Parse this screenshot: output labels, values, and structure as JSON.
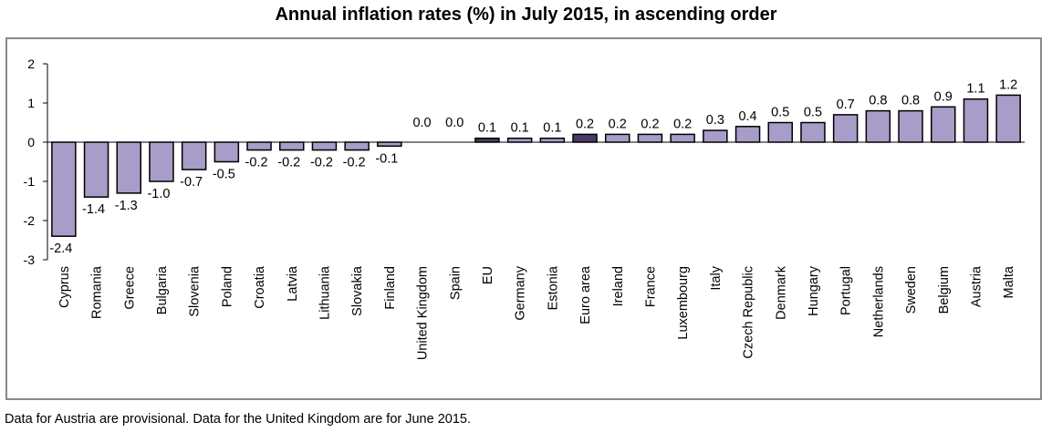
{
  "colors": {
    "bar_fill": "#a89cc8",
    "bar_highlight": "#4b3a63",
    "bar_stroke": "#000000",
    "frame": "#888888",
    "axis": "#000000"
  },
  "footnote": "Data for Austria are provisional. Data for the United Kingdom are for June 2015.",
  "chart_data": {
    "type": "bar",
    "title": "Annual inflation rates (%) in July 2015, in ascending order",
    "xlabel": "",
    "ylabel": "",
    "ylim": [
      -3,
      2
    ],
    "yticks": [
      "-3",
      "-2",
      "-1",
      "0",
      "1",
      "2"
    ],
    "grid": false,
    "legend": "none",
    "highlighted": [
      "EU",
      "Euro area"
    ],
    "categories": [
      "Cyprus",
      "Romania",
      "Greece",
      "Bulgaria",
      "Slovenia",
      "Poland",
      "Croatia",
      "Latvia",
      "Lithuania",
      "Slovakia",
      "Finland",
      "United Kingdom",
      "Spain",
      "EU",
      "Germany",
      "Estonia",
      "Euro area",
      "Ireland",
      "France",
      "Luxembourg",
      "Italy",
      "Czech Republic",
      "Denmark",
      "Hungary",
      "Portugal",
      "Netherlands",
      "Sweden",
      "Belgium",
      "Austria",
      "Malta"
    ],
    "values": [
      -2.4,
      -1.4,
      -1.3,
      -1.0,
      -0.7,
      -0.5,
      -0.2,
      -0.2,
      -0.2,
      -0.2,
      -0.1,
      0.0,
      0.0,
      0.1,
      0.1,
      0.1,
      0.2,
      0.2,
      0.2,
      0.2,
      0.3,
      0.4,
      0.5,
      0.5,
      0.7,
      0.8,
      0.8,
      0.9,
      1.1,
      1.2
    ],
    "value_labels": [
      "-2.4",
      "-1.4",
      "-1.3",
      "-1.0",
      "-0.7",
      "-0.5",
      "-0.2",
      "-0.2",
      "-0.2",
      "-0.2",
      "-0.1",
      "0.0",
      "0.0",
      "0.1",
      "0.1",
      "0.1",
      "0.2",
      "0.2",
      "0.2",
      "0.2",
      "0.3",
      "0.4",
      "0.5",
      "0.5",
      "0.7",
      "0.8",
      "0.8",
      "0.9",
      "1.1",
      "1.2"
    ]
  }
}
